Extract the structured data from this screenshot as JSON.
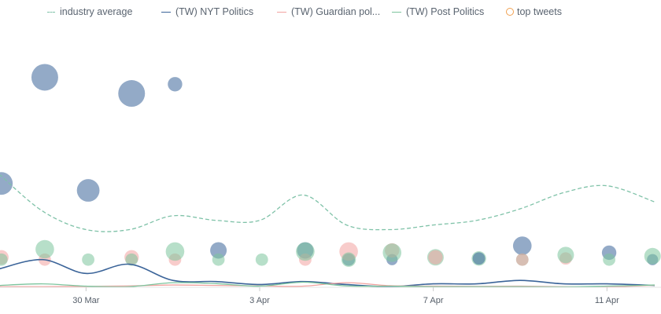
{
  "legend": {
    "items": [
      {
        "label": "industry average",
        "color": "#7fc2a8",
        "style": "dashed"
      },
      {
        "label": "(TW) NYT Politics",
        "color": "#3b6499",
        "style": "solid"
      },
      {
        "label": "(TW) Guardian pol...",
        "color": "#f2a3a0",
        "style": "solid"
      },
      {
        "label": "(TW) Post Politics",
        "color": "#7cc49d",
        "style": "solid"
      },
      {
        "label": "top tweets",
        "color": "#f0a050",
        "style": "circle"
      }
    ]
  },
  "chart_data": {
    "type": "line",
    "xaxis": {
      "ticks": [
        "30 Mar",
        "3 Apr",
        "7 Apr",
        "11 Apr"
      ],
      "tick_days": [
        2,
        6,
        10,
        14
      ]
    },
    "x_range_days": [
      0,
      15.1
    ],
    "y_range": [
      0,
      100
    ],
    "grid": false,
    "legend_position": "top",
    "series": [
      {
        "name": "industry average",
        "color": "#7fc2a8",
        "x": [
          0,
          1,
          2,
          3,
          4,
          5,
          6,
          7,
          8,
          9,
          10,
          11,
          12,
          13,
          14,
          15.1
        ],
        "y": [
          49,
          33,
          25,
          25,
          31,
          29,
          29,
          40,
          27,
          25,
          27,
          29,
          34,
          41,
          44,
          37
        ]
      },
      {
        "name": "(TW) NYT Politics",
        "color": "#3b6499",
        "x": [
          0,
          1,
          2,
          3,
          4,
          5,
          6,
          7,
          8,
          9,
          10,
          11,
          12,
          13,
          14,
          15.1
        ],
        "y": [
          8,
          12,
          6,
          10,
          3,
          2.5,
          1.2,
          2.5,
          1.2,
          0.3,
          1.5,
          1.5,
          3,
          1.5,
          1.5,
          0.8
        ]
      },
      {
        "name": "(TW) Guardian pol...",
        "color": "#f2a3a0",
        "x": [
          0,
          1,
          2,
          3,
          4,
          5,
          6,
          7,
          8,
          9,
          10,
          11,
          12,
          13,
          14,
          15.1
        ],
        "y": [
          0.3,
          0.3,
          0.4,
          0.6,
          1,
          0.8,
          0.6,
          0.5,
          2,
          0.7,
          0.5,
          0.4,
          0.5,
          0.3,
          0.2,
          0.9
        ]
      },
      {
        "name": "(TW) Post Politics",
        "color": "#7cc49d",
        "x": [
          0,
          1,
          2,
          3,
          4,
          5,
          6,
          7,
          8,
          9,
          10,
          11,
          12,
          13,
          14,
          15.1
        ],
        "y": [
          0.8,
          1.5,
          0.5,
          0.3,
          2,
          1.6,
          0.5,
          2.2,
          0.6,
          0.5,
          0.3,
          0.3,
          0.3,
          0.2,
          0.5,
          1
        ]
      }
    ],
    "top_tweets": [
      {
        "x": 0.05,
        "y": 45,
        "size": 4,
        "series": "(TW) NYT Politics"
      },
      {
        "x": 1.05,
        "y": 91,
        "size": 5,
        "series": "(TW) NYT Politics"
      },
      {
        "x": 3.05,
        "y": 84,
        "size": 5,
        "series": "(TW) NYT Politics"
      },
      {
        "x": 4.05,
        "y": 88,
        "size": 2,
        "series": "(TW) NYT Politics"
      },
      {
        "x": 2.05,
        "y": 42,
        "size": 4,
        "series": "(TW) NYT Politics"
      },
      {
        "x": 5.05,
        "y": 16,
        "size": 2.5,
        "series": "(TW) NYT Politics"
      },
      {
        "x": 7.05,
        "y": 16,
        "size": 2.5,
        "series": "(TW) NYT Politics"
      },
      {
        "x": 8.05,
        "y": 12,
        "size": 1.5,
        "series": "(TW) NYT Politics"
      },
      {
        "x": 9.05,
        "y": 12,
        "size": 1.2,
        "series": "(TW) NYT Politics"
      },
      {
        "x": 12.05,
        "y": 18,
        "size": 3,
        "series": "(TW) NYT Politics"
      },
      {
        "x": 14.05,
        "y": 15,
        "size": 2,
        "series": "(TW) NYT Politics"
      },
      {
        "x": 15.05,
        "y": 12,
        "size": 1.2,
        "series": "(TW) NYT Politics"
      },
      {
        "x": 0.05,
        "y": 13,
        "size": 2,
        "series": "(TW) Guardian pol..."
      },
      {
        "x": 1.05,
        "y": 12,
        "size": 1.5,
        "series": "(TW) Guardian pol..."
      },
      {
        "x": 3.05,
        "y": 13,
        "size": 2,
        "series": "(TW) Guardian pol..."
      },
      {
        "x": 4.05,
        "y": 12,
        "size": 1.5,
        "series": "(TW) Guardian pol..."
      },
      {
        "x": 7.05,
        "y": 12,
        "size": 1.5,
        "series": "(TW) Guardian pol..."
      },
      {
        "x": 8.05,
        "y": 15.5,
        "size": 3,
        "series": "(TW) Guardian pol..."
      },
      {
        "x": 9.05,
        "y": 16,
        "size": 2,
        "series": "(TW) Guardian pol..."
      },
      {
        "x": 13.05,
        "y": 12.5,
        "size": 1.5,
        "series": "(TW) Guardian pol..."
      },
      {
        "x": 0.05,
        "y": 12,
        "size": 1.5,
        "series": "(TW) Post Politics"
      },
      {
        "x": 1.05,
        "y": 16.5,
        "size": 3,
        "series": "(TW) Post Politics"
      },
      {
        "x": 2.05,
        "y": 12,
        "size": 1.5,
        "series": "(TW) Post Politics"
      },
      {
        "x": 3.05,
        "y": 12,
        "size": 1.5,
        "series": "(TW) Post Politics"
      },
      {
        "x": 4.05,
        "y": 15.5,
        "size": 3,
        "series": "(TW) Post Politics"
      },
      {
        "x": 5.05,
        "y": 12,
        "size": 1.5,
        "series": "(TW) Post Politics"
      },
      {
        "x": 6.05,
        "y": 12,
        "size": 1.5,
        "series": "(TW) Post Politics"
      },
      {
        "x": 7.05,
        "y": 15.5,
        "size": 3,
        "series": "(TW) Post Politics"
      },
      {
        "x": 8.05,
        "y": 12,
        "size": 2,
        "series": "(TW) Post Politics"
      },
      {
        "x": 9.05,
        "y": 15,
        "size": 3,
        "series": "(TW) Post Politics"
      },
      {
        "x": 10.05,
        "y": 13,
        "size": 2.5,
        "series": "(TW) Post Politics"
      },
      {
        "x": 11.05,
        "y": 12.5,
        "size": 2,
        "series": "(TW) Post Politics"
      },
      {
        "x": 12.05,
        "y": 12,
        "size": 1.5,
        "series": "(TW) Post Politics"
      },
      {
        "x": 13.05,
        "y": 14,
        "size": 2.5,
        "series": "(TW) Post Politics"
      },
      {
        "x": 14.05,
        "y": 12,
        "size": 1.5,
        "series": "(TW) Post Politics"
      },
      {
        "x": 15.05,
        "y": 13.5,
        "size": 2.5,
        "series": "(TW) Post Politics"
      },
      {
        "x": 10.05,
        "y": 13,
        "size": 2,
        "series": "(TW) Guardian pol..."
      },
      {
        "x": 11.05,
        "y": 12.5,
        "size": 1.5,
        "series": "(TW) NYT Politics"
      },
      {
        "x": 12.05,
        "y": 12,
        "size": 1.5,
        "series": "(TW) Guardian pol..."
      }
    ]
  }
}
